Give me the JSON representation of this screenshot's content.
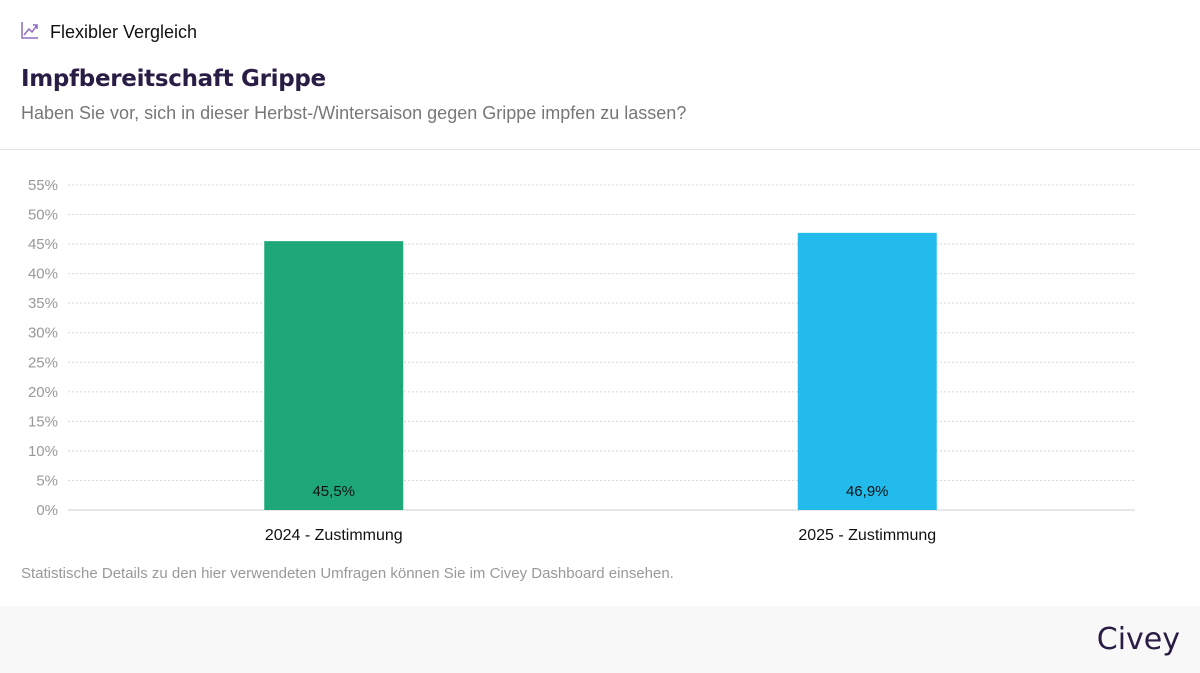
{
  "header": {
    "label": "Flexibler Vergleich",
    "icon": "trend-chart-icon",
    "icon_color": "#8e6bbf"
  },
  "title": "Impfbereitschaft Grippe",
  "subtitle": "Haben Sie vor, sich in dieser Herbst-/Wintersaison gegen Grippe impfen zu lassen?",
  "note": "Statistische Details zu den hier verwendeten Umfragen können Sie im Civey Dashboard einsehen.",
  "logo": "Civey",
  "chart_data": {
    "type": "bar",
    "categories": [
      "2024 - Zustimmung",
      "2025 - Zustimmung"
    ],
    "values": [
      45.5,
      46.9
    ],
    "value_labels": [
      "45,5%",
      "46,9%"
    ],
    "colors": [
      "#1ea87a",
      "#22bbeb"
    ],
    "ylim": [
      0,
      55
    ],
    "yticks": [
      "0%",
      "5%",
      "10%",
      "15%",
      "20%",
      "25%",
      "30%",
      "35%",
      "40%",
      "45%",
      "50%",
      "55%"
    ],
    "grid": true
  }
}
